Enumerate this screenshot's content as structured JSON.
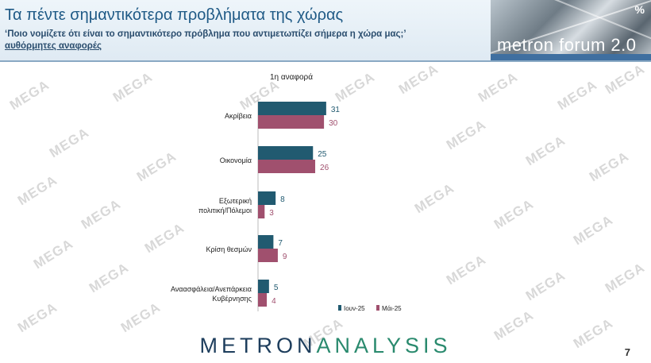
{
  "header": {
    "title": "Τα πέντε σημαντικότερα προβλήματα της χώρας",
    "subtitle": "‘Ποιο νομίζετε ότι είναι το σημαντικότερο πρόβλημα που αντιμετωπίζει σήμερα η χώρα μας;’",
    "subtitle2": "αυθόρμητες αναφορές"
  },
  "logo": {
    "text": "metron forum 2.0",
    "pct": "%"
  },
  "watermark": "MEGA",
  "footer": {
    "metron": "METRON",
    "analysis": "ANALYSIS",
    "page": "7"
  },
  "colors": {
    "series1": "#215a70",
    "series2": "#a0506e",
    "header_text": "#1f5a86"
  },
  "chart_data": {
    "type": "bar",
    "orientation": "horizontal",
    "title": "1η αναφορά",
    "categories": [
      "Ακρίβεια",
      "Οικονομία",
      "Εξωτερική πολιτική/Πόλεμοι",
      "Κρίση θεσμών",
      "Αναασφάλεια/Ανεπάρκεια Κυβέρνησης"
    ],
    "category_lines": [
      [
        "Ακρίβεια"
      ],
      [
        "Οικονομία"
      ],
      [
        "Εξωτερική",
        "πολιτική/Πόλεμοι"
      ],
      [
        "Κρίση θεσμών"
      ],
      [
        "Αναασφάλεια/Ανεπάρκεια",
        "Κυβέρνησης"
      ]
    ],
    "series": [
      {
        "name": "Ιουν-25",
        "values": [
          31,
          25,
          8,
          7,
          5
        ]
      },
      {
        "name": "Μάι-25",
        "values": [
          30,
          26,
          3,
          9,
          4
        ]
      }
    ],
    "legend_position": "bottom-right"
  }
}
